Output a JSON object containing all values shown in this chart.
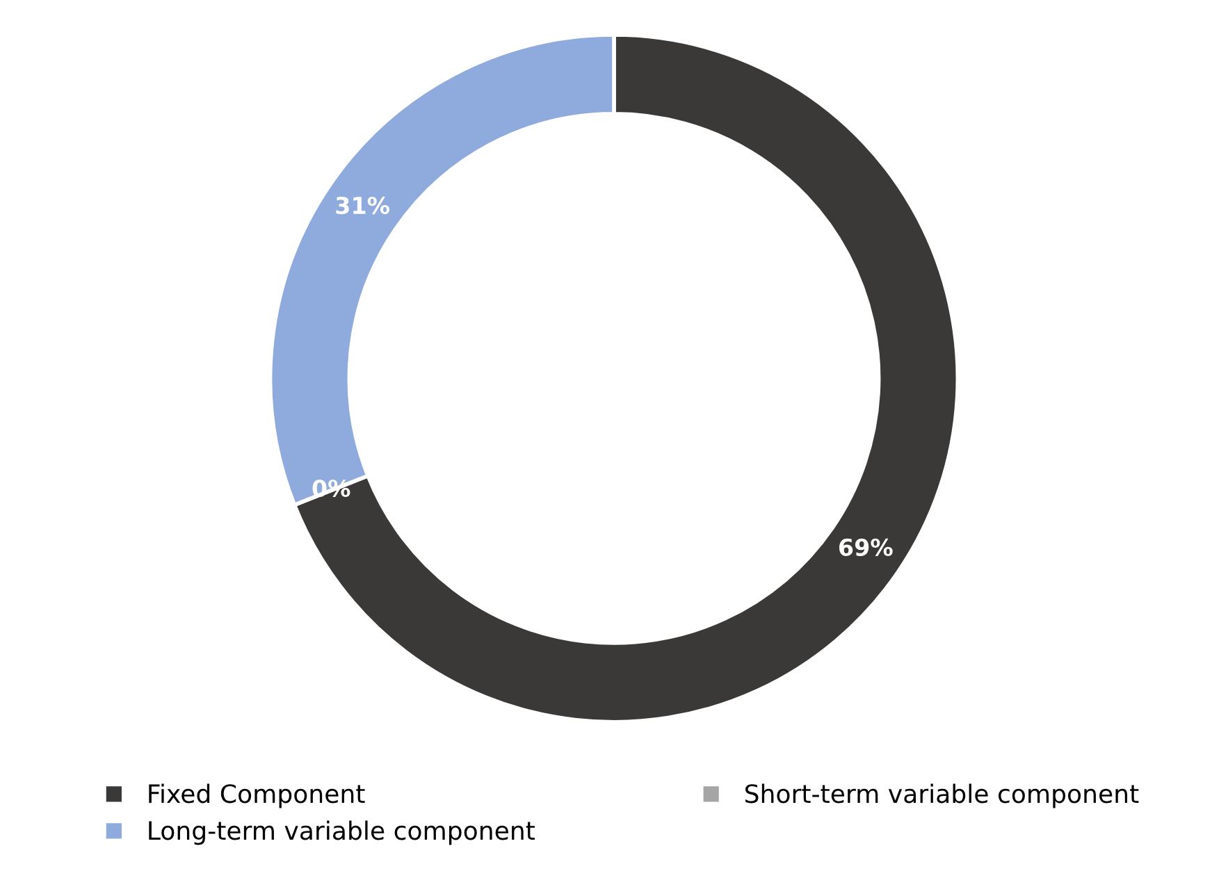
{
  "chart_data": {
    "type": "donut",
    "categories": [
      "Fixed Component",
      "Short-term variable component",
      "Long-term variable component"
    ],
    "values": [
      69,
      0,
      31
    ],
    "colors": [
      "#3a3938",
      "#a5a5a5",
      "#8faadc"
    ],
    "value_labels": [
      "69%",
      "0%",
      "31%"
    ],
    "legend": "bottom"
  }
}
